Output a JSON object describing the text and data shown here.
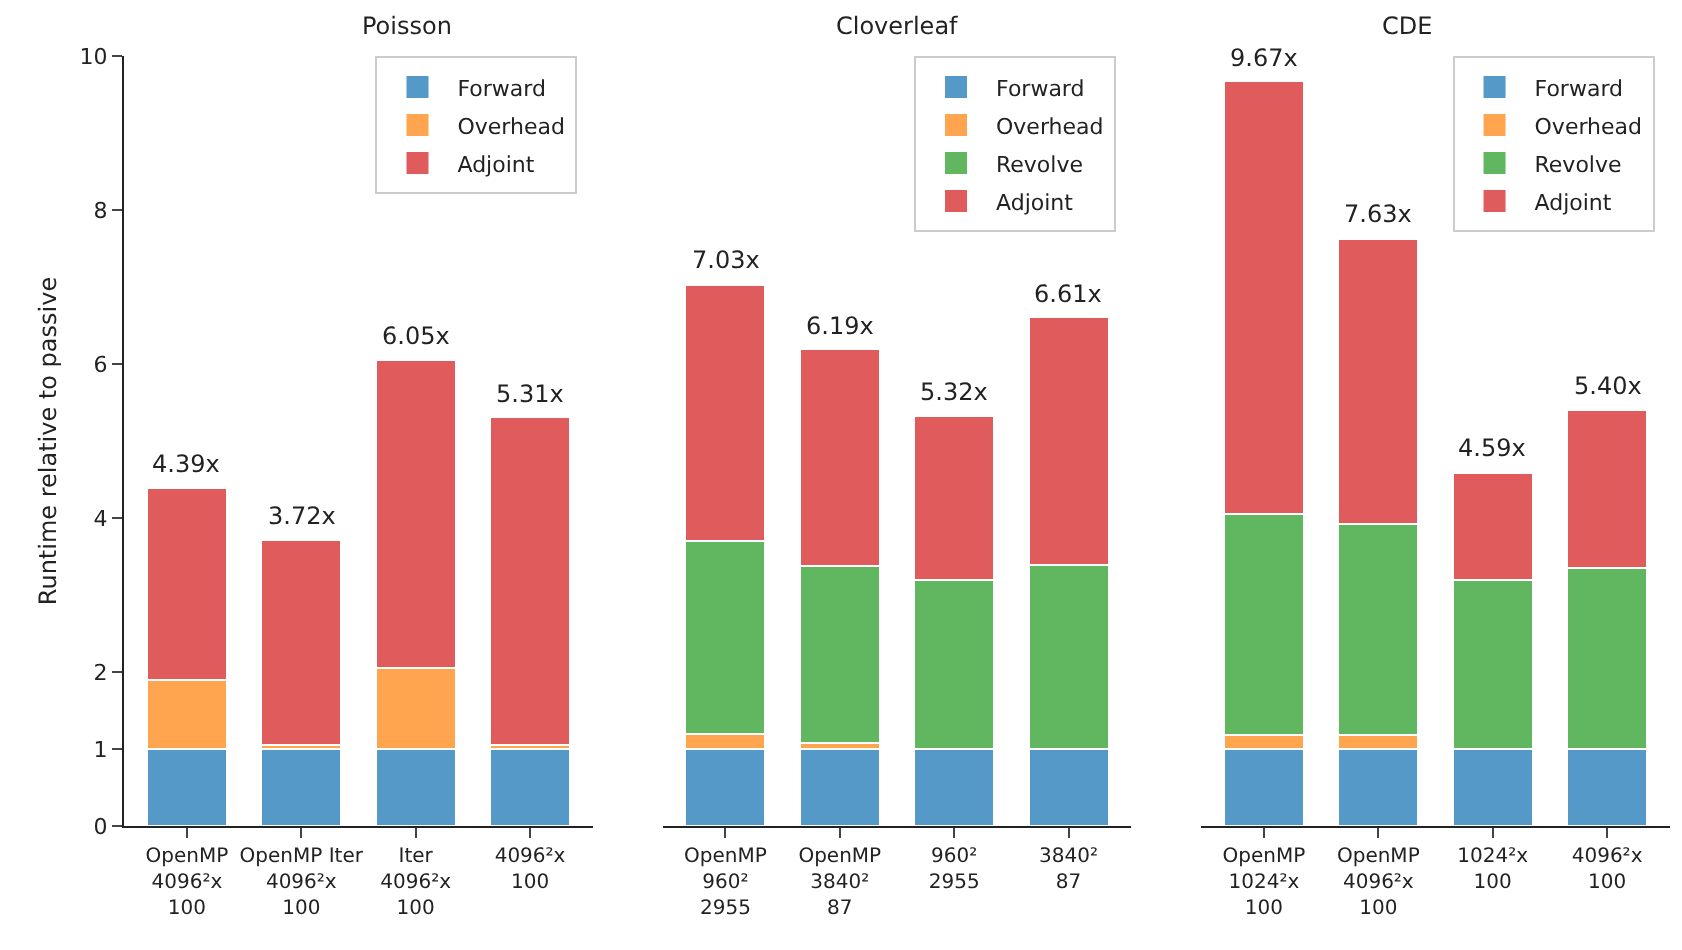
{
  "chart_data": [
    {
      "type": "bar",
      "title": "Poisson",
      "ylabel": "Runtime relative to passive",
      "stacked": true,
      "legend": "top right",
      "grid": false,
      "categories": [
        "OpenMP\n4096²x\n100",
        "OpenMP Iter\n4096²x\n100",
        "Iter\n4096²x\n100",
        "4096²x\n100"
      ],
      "ylim": [
        0,
        10
      ],
      "yticks": [
        0,
        1,
        2,
        4,
        6,
        8,
        10
      ],
      "totals": [
        "4.39x",
        "3.72x",
        "6.05x",
        "5.31x"
      ],
      "series": [
        {
          "name": "Forward",
          "color": "#5499c7",
          "values": [
            1,
            1,
            1,
            1
          ]
        },
        {
          "name": "Overhead",
          "color": "#ffa54f",
          "values": [
            0.9,
            0.05,
            1.05,
            0.05
          ]
        },
        {
          "name": "Adjoint",
          "color": "#e05c5c",
          "values": [
            2.49,
            2.67,
            4.0,
            4.26
          ]
        }
      ]
    },
    {
      "type": "bar",
      "title": "Cloverleaf",
      "stacked": true,
      "legend": "top right",
      "grid": false,
      "tick_labels": "x",
      "categories": [
        "OpenMP\n960²\n2955",
        "OpenMP\n3840²\n87",
        "960²\n2955",
        "3840²\n87"
      ],
      "ylim": [
        0,
        10
      ],
      "yticks": [
        0,
        1,
        2,
        4,
        6,
        8,
        10
      ],
      "totals": [
        "7.03x",
        "6.19x",
        "5.32x",
        "6.61x"
      ],
      "series": [
        {
          "name": "Forward",
          "color": "#5499c7",
          "values": [
            1,
            1,
            1,
            1
          ]
        },
        {
          "name": "Overhead",
          "color": "#ffa54f",
          "values": [
            0.2,
            0.08,
            null,
            null
          ]
        },
        {
          "name": "Revolve",
          "color": "#60b760",
          "values": [
            2.5,
            2.3,
            2.2,
            2.39
          ]
        },
        {
          "name": "Adjoint",
          "color": "#e05c5c",
          "values": [
            3.33,
            2.81,
            2.12,
            3.22
          ]
        }
      ]
    },
    {
      "type": "bar",
      "title": "CDE",
      "stacked": true,
      "legend": "top right",
      "grid": false,
      "tick_labels": "x",
      "categories": [
        "OpenMP\n1024²x\n100",
        "OpenMP\n4096²x\n100",
        "1024²x\n100",
        "4096²x\n100"
      ],
      "ylim": [
        0,
        10
      ],
      "yticks": [
        0,
        1,
        2,
        4,
        6,
        8,
        10
      ],
      "totals": [
        "9.67x",
        "7.63x",
        "4.59x",
        "5.40x"
      ],
      "series": [
        {
          "name": "Forward",
          "color": "#5499c7",
          "values": [
            1,
            1,
            1,
            1
          ]
        },
        {
          "name": "Overhead",
          "color": "#ffa54f",
          "values": [
            0.18,
            0.18,
            null,
            null
          ]
        },
        {
          "name": "Revolve",
          "color": "#60b760",
          "values": [
            2.87,
            2.74,
            2.2,
            2.35
          ]
        },
        {
          "name": "Adjoint",
          "color": "#e05c5c",
          "values": [
            5.62,
            3.71,
            1.39,
            2.05
          ]
        }
      ]
    }
  ]
}
